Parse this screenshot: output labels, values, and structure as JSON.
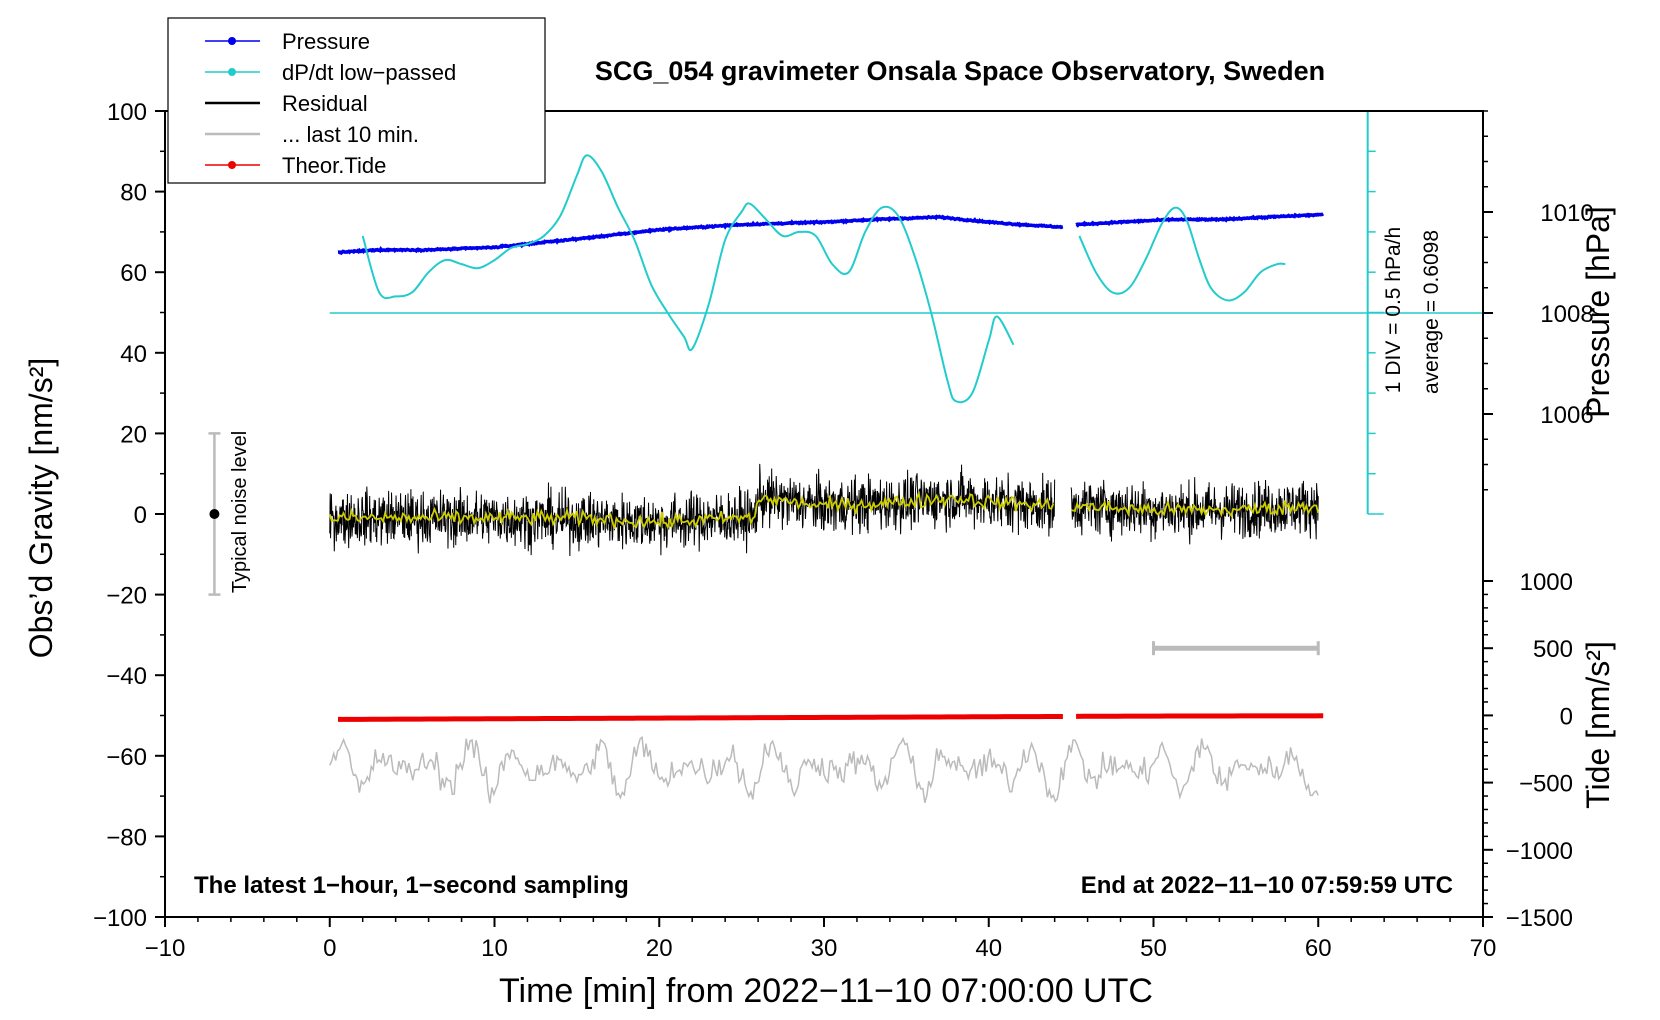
{
  "chart_data": {
    "type": "line",
    "title": "SCG_054 gravimeter Onsala Space Observatory, Sweden",
    "xlabel": "Time [min] from 2022−11−10 07:00:00 UTC",
    "ylabel_left": "Obs’d Gravity [nm/s²]",
    "ylabel_right_pressure": "Pressure [hPa]",
    "ylabel_right_tide": "Tide [nm/s²]",
    "xlim": [
      -10,
      70
    ],
    "ylim_left": [
      -100,
      100
    ],
    "x_ticks": [
      "−10",
      "0",
      "10",
      "20",
      "30",
      "40",
      "50",
      "60",
      "70"
    ],
    "y_ticks_left": [
      "100",
      "80",
      "60",
      "40",
      "20",
      "0",
      "−20",
      "−40",
      "−60",
      "−80",
      "−100"
    ],
    "pressure_ticks": [
      "1010",
      "1008",
      "1006"
    ],
    "pressure_tick_values": [
      1010,
      1008,
      1006
    ],
    "pressure_range": [
      1004,
      1012
    ],
    "tide_ticks": [
      "1000",
      "500",
      "0",
      "−500",
      "−1000",
      "−1500"
    ],
    "tide_tick_values": [
      1000,
      500,
      0,
      -500,
      -1000,
      -1500
    ],
    "tide_range": [
      -1500,
      1000
    ],
    "legend": [
      {
        "label": "Pressure",
        "color": "#0000ee",
        "marker": true
      },
      {
        "label": "dP/dt low−passed",
        "color": "#22cccc",
        "marker": true
      },
      {
        "label": "Residual",
        "color": "#000000",
        "marker": false
      },
      {
        "label": "... last 10 min.",
        "color": "#bbbbbb",
        "marker": false
      },
      {
        "label": "Theor.Tide",
        "color": "#ee0000",
        "marker": true
      }
    ],
    "annotations": {
      "noise": "Typical noise level",
      "dpdt_scale": "1 DIV = 0.5 hPa/h",
      "average": "average = 0.6098",
      "bottom_left": "The latest 1−hour, 1−second sampling",
      "bottom_right": "End at 2022−11−10 07:59:59 UTC"
    },
    "noise_level": {
      "x": -7,
      "center": 0,
      "range": [
        -20,
        20
      ]
    },
    "last10_bar": {
      "x": [
        50,
        60
      ],
      "tide": 500
    },
    "dpdt_baseline_hpa": 1008,
    "dpdt_axis": {
      "x": 63,
      "gravity_range": [
        0,
        100
      ]
    },
    "series": [
      {
        "name": "Pressure",
        "axis": "pressure",
        "color": "#0000ee",
        "segments": [
          {
            "x": [
              0.5,
              3,
              6,
              10,
              13,
              16,
              20,
              25,
              30,
              33,
              37,
              40,
              42,
              44.5
            ],
            "y": [
              1009.2,
              1009.25,
              1009.25,
              1009.3,
              1009.4,
              1009.5,
              1009.65,
              1009.75,
              1009.8,
              1009.85,
              1009.9,
              1009.8,
              1009.75,
              1009.7
            ]
          },
          {
            "x": [
              45.3,
              48,
              51,
              54,
              57,
              60.3
            ],
            "y": [
              1009.75,
              1009.8,
              1009.85,
              1009.85,
              1009.9,
              1009.95
            ]
          }
        ]
      },
      {
        "name": "dP/dt low-passed",
        "axis": "gravity",
        "color": "#22cccc",
        "segments": [
          {
            "x": [
              2,
              3,
              4,
              5,
              6,
              7,
              8,
              9,
              10,
              11,
              12,
              13,
              14,
              15,
              15.6,
              16.5,
              17.5,
              18.5,
              19.5,
              20.5,
              21.5,
              22,
              23,
              24,
              25,
              25.5,
              26.5,
              27.5,
              28.5,
              29.5,
              30.5,
              31.5,
              32.5,
              33.5,
              34.5,
              35.5,
              36.5,
              37.5,
              38,
              39,
              40,
              40.5,
              41.5
            ],
            "y": [
              69,
              55,
              54,
              55,
              60,
              63,
              62,
              61,
              63,
              66,
              67,
              69,
              74,
              84,
              89,
              85,
              76,
              68,
              57,
              50,
              44,
              41,
              52,
              68,
              75,
              77,
              73,
              69,
              70,
              69,
              62,
              60,
              70,
              76,
              74,
              64,
              50,
              33,
              28,
              30,
              43,
              49,
              42
            ]
          },
          {
            "x": [
              45.5,
              46.5,
              47.5,
              48.5,
              49.5,
              50.5,
              51.3,
              52,
              52.8,
              53.5,
              54.5,
              55.5,
              56.5,
              57.5,
              58
            ],
            "y": [
              69,
              60,
              55,
              56,
              63,
              72,
              76,
              73,
              63,
              56,
              53,
              55,
              60,
              62,
              62
            ]
          }
        ]
      },
      {
        "name": "Residual",
        "axis": "gravity",
        "color": "#000000",
        "segments": [
          {
            "x": [
              0,
              10,
              20,
              25,
              25.8,
              26,
              30,
              35,
              38,
              40,
              44
            ],
            "y": [
              -1,
              -1,
              -2,
              -1,
              -1,
              4,
              2,
              3,
              4,
              3,
              2
            ]
          },
          {
            "x": [
              45,
              50,
              55,
              60
            ],
            "y": [
              2,
              1,
              1,
              2
            ]
          }
        ]
      },
      {
        "name": "Residual smoothed",
        "axis": "gravity",
        "color": "#cccc00",
        "segments": [
          {
            "x": [
              0,
              5,
              10,
              15,
              20,
              25,
              25.8,
              26,
              30,
              35,
              38,
              40,
              44
            ],
            "y": [
              -1,
              -1,
              -1,
              -1,
              -2,
              -1,
              -1,
              4,
              2,
              3,
              4,
              3,
              2
            ]
          },
          {
            "x": [
              45,
              50,
              55,
              60
            ],
            "y": [
              2,
              1,
              1,
              2
            ]
          }
        ]
      },
      {
        "name": "Theor.Tide",
        "axis": "tide",
        "color": "#ee0000",
        "segments": [
          {
            "x": [
              0.5,
              10,
              20,
              30,
              40,
              44.5
            ],
            "y": [
              -30,
              -25,
              -20,
              -15,
              -10,
              -8
            ]
          },
          {
            "x": [
              45.3,
              50,
              55,
              60.3
            ],
            "y": [
              -7,
              -5,
              -4,
              -3
            ]
          }
        ]
      },
      {
        "name": "... last 10 min.",
        "axis": "gravity",
        "color": "#bbbbbb",
        "segments": [
          {
            "x": [
              0,
              60
            ],
            "y": [
              -63,
              -63
            ]
          }
        ]
      }
    ]
  }
}
